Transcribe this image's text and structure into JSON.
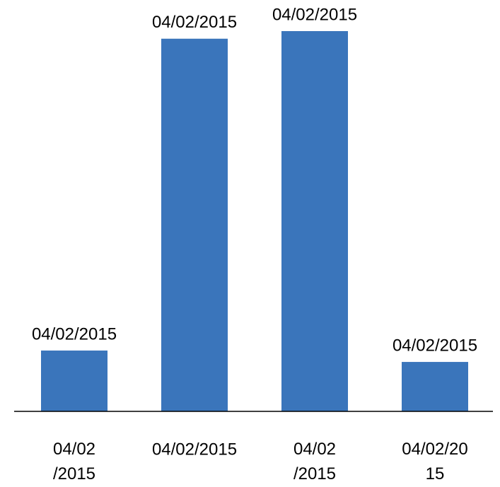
{
  "chart_data": {
    "type": "bar",
    "categories": [
      "04/02/2015",
      "04/02/2015",
      "04/02/2015",
      "04/02/2015"
    ],
    "values": [
      16,
      98,
      100,
      13
    ],
    "value_labels": [
      "04/02/2015",
      "04/02/2015",
      "04/02/2015",
      "04/02/2015"
    ],
    "color": "#3a75bb"
  }
}
